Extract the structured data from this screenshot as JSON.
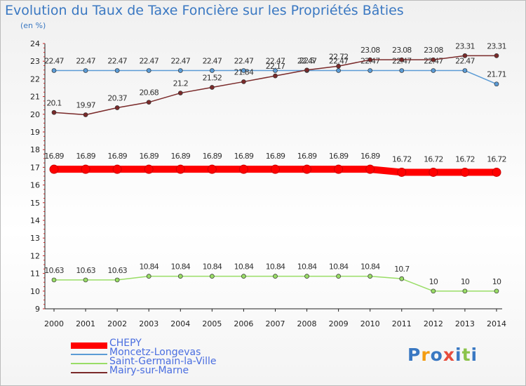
{
  "chart_data": {
    "type": "line",
    "title": "Evolution du Taux de Taxe Foncière sur les Propriétés Bâties",
    "subtitle": "(en %)",
    "xlabel": "",
    "ylabel": "",
    "ylim": [
      9,
      24
    ],
    "yticks": [
      "9",
      "10",
      "11",
      "12",
      "13",
      "14",
      "15",
      "16",
      "17",
      "18",
      "19",
      "20",
      "21",
      "22",
      "23",
      "24"
    ],
    "categories": [
      "2000",
      "2001",
      "2002",
      "2003",
      "2004",
      "2005",
      "2006",
      "2007",
      "2008",
      "2009",
      "2010",
      "2011",
      "2012",
      "2013",
      "2014"
    ],
    "series": [
      {
        "name": "CHEPY",
        "color": "#ff0000",
        "values": [
          16.89,
          16.89,
          16.89,
          16.89,
          16.89,
          16.89,
          16.89,
          16.89,
          16.89,
          16.89,
          16.89,
          16.72,
          16.72,
          16.72,
          16.72
        ],
        "labels": [
          "16.89",
          "16.89",
          "16.89",
          "16.89",
          "16.89",
          "16.89",
          "16.89",
          "16.89",
          "16.89",
          "16.89",
          "16.89",
          "16.72",
          "16.72",
          "16.72",
          "16.72"
        ]
      },
      {
        "name": "Moncetz-Longevas",
        "color": "#5b9bd5",
        "values": [
          22.47,
          22.47,
          22.47,
          22.47,
          22.47,
          22.47,
          22.47,
          22.47,
          22.47,
          22.47,
          22.47,
          22.47,
          22.47,
          22.47,
          21.71
        ],
        "labels": [
          "22.47",
          "22.47",
          "22.47",
          "22.47",
          "22.47",
          "22.47",
          "22.47",
          "22.47",
          "22.47",
          "22.47",
          "22.47",
          "22.47",
          "22.47",
          "22.47",
          "21.71"
        ]
      },
      {
        "name": "Saint-Germain-la-Ville",
        "color": "#99dd66",
        "values": [
          10.63,
          10.63,
          10.63,
          10.84,
          10.84,
          10.84,
          10.84,
          10.84,
          10.84,
          10.84,
          10.84,
          10.7,
          10,
          10,
          10
        ],
        "labels": [
          "10.63",
          "10.63",
          "10.63",
          "10.84",
          "10.84",
          "10.84",
          "10.84",
          "10.84",
          "10.84",
          "10.84",
          "10.84",
          "10.7",
          "10",
          "10",
          "10"
        ]
      },
      {
        "name": "Mairy-sur-Marne",
        "color": "#7a2a2a",
        "values": [
          20.1,
          19.97,
          20.37,
          20.68,
          21.2,
          21.52,
          21.84,
          22.17,
          22.5,
          22.72,
          23.08,
          23.08,
          23.08,
          23.31,
          23.31
        ],
        "labels": [
          "20.1",
          "19.97",
          "20.37",
          "20.68",
          "21.2",
          "21.52",
          "21.84",
          "22.17",
          "22.5",
          "22.72",
          "23.08",
          "23.08",
          "23.08",
          "23.31",
          "23.31"
        ]
      }
    ]
  },
  "brand": {
    "letters": [
      "P",
      "r",
      "o",
      "x",
      "i",
      "t",
      "i"
    ],
    "colors": [
      "#3a78c2",
      "#f39c12",
      "#3a78c2",
      "#e74c3c",
      "#3a78c2",
      "#8bc34a",
      "#3a78c2"
    ]
  }
}
